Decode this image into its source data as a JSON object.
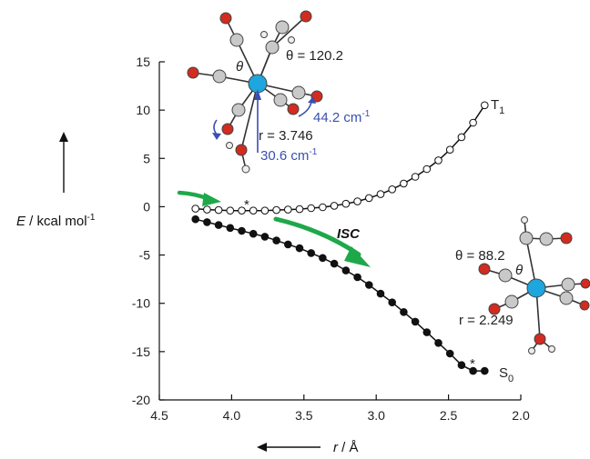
{
  "chart_data": {
    "type": "line",
    "xlabel_var": "r",
    "xlabel_unit": " / Å",
    "ylabel_var": "E",
    "ylabel_unit": " / kcal mol",
    "ylabel_sup": "-1",
    "xlim": [
      4.5,
      2.0
    ],
    "ylim": [
      -20,
      15
    ],
    "x_reversed": true,
    "x_ticks": [
      "4.5",
      "4.0",
      "3.5",
      "3.0",
      "2.5",
      "2.0"
    ],
    "y_ticks": [
      "15",
      "10",
      "5",
      "0",
      "-5",
      "-10",
      "-15",
      "-20"
    ],
    "series": [
      {
        "name": "T",
        "subscript": "1",
        "marker": "open-circle",
        "points": [
          [
            4.25,
            -0.2
          ],
          [
            4.17,
            -0.3
          ],
          [
            4.09,
            -0.35
          ],
          [
            4.01,
            -0.4
          ],
          [
            3.93,
            -0.4
          ],
          [
            3.85,
            -0.4
          ],
          [
            3.77,
            -0.4
          ],
          [
            3.69,
            -0.35
          ],
          [
            3.61,
            -0.3
          ],
          [
            3.53,
            -0.25
          ],
          [
            3.45,
            -0.15
          ],
          [
            3.37,
            -0.05
          ],
          [
            3.29,
            0.1
          ],
          [
            3.21,
            0.3
          ],
          [
            3.13,
            0.55
          ],
          [
            3.05,
            0.9
          ],
          [
            2.97,
            1.3
          ],
          [
            2.89,
            1.8
          ],
          [
            2.81,
            2.4
          ],
          [
            2.73,
            3.1
          ],
          [
            2.65,
            3.9
          ],
          [
            2.57,
            4.8
          ],
          [
            2.49,
            5.9
          ],
          [
            2.41,
            7.2
          ],
          [
            2.33,
            8.7
          ],
          [
            2.25,
            10.5
          ]
        ]
      },
      {
        "name": "S",
        "subscript": "0",
        "marker": "filled-circle",
        "points": [
          [
            4.25,
            -1.3
          ],
          [
            4.17,
            -1.6
          ],
          [
            4.09,
            -1.9
          ],
          [
            4.01,
            -2.2
          ],
          [
            3.93,
            -2.5
          ],
          [
            3.85,
            -2.8
          ],
          [
            3.77,
            -3.1
          ],
          [
            3.69,
            -3.5
          ],
          [
            3.61,
            -3.9
          ],
          [
            3.53,
            -4.3
          ],
          [
            3.45,
            -4.8
          ],
          [
            3.37,
            -5.3
          ],
          [
            3.29,
            -5.9
          ],
          [
            3.21,
            -6.6
          ],
          [
            3.13,
            -7.3
          ],
          [
            3.05,
            -8.1
          ],
          [
            2.97,
            -9.0
          ],
          [
            2.89,
            -9.9
          ],
          [
            2.81,
            -10.9
          ],
          [
            2.73,
            -11.9
          ],
          [
            2.65,
            -13.0
          ],
          [
            2.57,
            -14.1
          ],
          [
            2.49,
            -15.2
          ],
          [
            2.41,
            -16.4
          ],
          [
            2.33,
            -17.0
          ],
          [
            2.25,
            -17.0
          ]
        ]
      }
    ],
    "annotations": {
      "theta_T_label": "θ = 120.2",
      "r_T_label": "r = 3.746",
      "freq_1": "44.2 cm",
      "freq_2": "30.6 cm",
      "freq_sup": "-1",
      "theta_S_label": "θ = 88.2",
      "r_S_label": "r = 2.249",
      "theta_symbol": "θ",
      "isc": "ISC",
      "star": "*"
    },
    "colors": {
      "arrow_green": "#1fa84a",
      "annotation_blue": "#3a4fb0",
      "metal_atom": "#1ea6de",
      "oxygen_atom": "#d22b1f",
      "carbon_atom": "#c9c9c9"
    }
  }
}
